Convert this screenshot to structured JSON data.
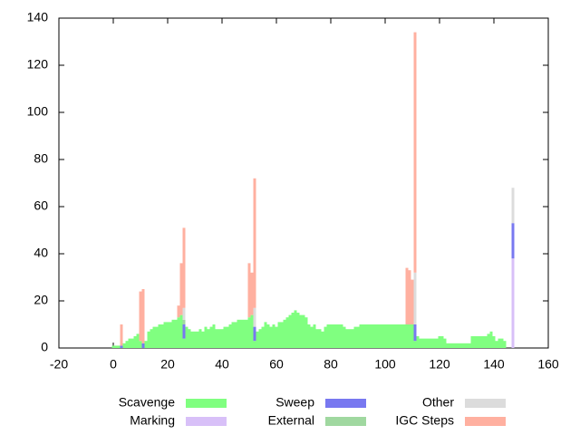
{
  "chart_data": {
    "type": "stacked-bar",
    "x": [
      0,
      1,
      2,
      3,
      4,
      5,
      6,
      7,
      8,
      9,
      10,
      11,
      12,
      13,
      14,
      15,
      16,
      17,
      18,
      19,
      20,
      21,
      22,
      23,
      24,
      25,
      26,
      27,
      28,
      29,
      30,
      31,
      32,
      33,
      34,
      35,
      36,
      37,
      38,
      39,
      40,
      41,
      42,
      43,
      44,
      45,
      46,
      47,
      48,
      49,
      50,
      51,
      52,
      53,
      54,
      55,
      56,
      57,
      58,
      59,
      60,
      61,
      62,
      63,
      64,
      65,
      66,
      67,
      68,
      69,
      70,
      71,
      72,
      73,
      74,
      75,
      76,
      77,
      78,
      79,
      80,
      81,
      82,
      83,
      84,
      85,
      86,
      87,
      88,
      89,
      90,
      91,
      92,
      93,
      94,
      95,
      96,
      97,
      98,
      99,
      100,
      101,
      102,
      103,
      104,
      105,
      106,
      107,
      108,
      109,
      110,
      111,
      112,
      113,
      114,
      115,
      116,
      117,
      118,
      119,
      120,
      121,
      122,
      123,
      124,
      125,
      126,
      127,
      128,
      129,
      130,
      131,
      132,
      133,
      134,
      135,
      136,
      137,
      138,
      139,
      140,
      141,
      142,
      143,
      144,
      145,
      146,
      147
    ],
    "series": [
      {
        "name": "Scavenge",
        "color": "#80ff80",
        "values": [
          1,
          1,
          1,
          0,
          2,
          3,
          4,
          4,
          5,
          6,
          3,
          0,
          3,
          7,
          8,
          9,
          9,
          10,
          10,
          11,
          11,
          11,
          12,
          12,
          13,
          14,
          4,
          9,
          8,
          7,
          7,
          7,
          8,
          7,
          9,
          8,
          9,
          10,
          8,
          8,
          8,
          9,
          9,
          10,
          11,
          11,
          12,
          12,
          12,
          12,
          13,
          14,
          3,
          7,
          8,
          9,
          11,
          10,
          9,
          10,
          9,
          11,
          11,
          12,
          13,
          14,
          15,
          16,
          15,
          14,
          14,
          13,
          10,
          9,
          10,
          8,
          8,
          7,
          9,
          10,
          10,
          10,
          10,
          10,
          10,
          9,
          8,
          8,
          8,
          9,
          9,
          10,
          10,
          10,
          10,
          10,
          10,
          10,
          10,
          10,
          10,
          10,
          10,
          10,
          10,
          10,
          10,
          10,
          10,
          10,
          10,
          3,
          5,
          4,
          4,
          4,
          4,
          4,
          4,
          4,
          5,
          5,
          4,
          2,
          2,
          2,
          2,
          2,
          2,
          2,
          2,
          2,
          5,
          5,
          5,
          5,
          5,
          5,
          6,
          7,
          5,
          3,
          4,
          4,
          3,
          0,
          0,
          0
        ]
      },
      {
        "name": "Marking",
        "color": "#d8c0f8",
        "values": [
          0,
          0,
          0,
          0,
          0,
          0,
          0,
          0,
          0,
          0,
          0,
          0,
          0,
          0,
          0,
          0,
          0,
          0,
          0,
          0,
          0,
          0,
          0,
          0,
          0,
          0,
          0,
          0,
          0,
          0,
          0,
          0,
          0,
          0,
          0,
          0,
          0,
          0,
          0,
          0,
          0,
          0,
          0,
          0,
          0,
          0,
          0,
          0,
          0,
          0,
          0,
          0,
          0,
          0,
          0,
          0,
          0,
          0,
          0,
          0,
          0,
          0,
          0,
          0,
          0,
          0,
          0,
          0,
          0,
          0,
          0,
          0,
          0,
          0,
          0,
          0,
          0,
          0,
          0,
          0,
          0,
          0,
          0,
          0,
          0,
          0,
          0,
          0,
          0,
          0,
          0,
          0,
          0,
          0,
          0,
          0,
          0,
          0,
          0,
          0,
          0,
          0,
          0,
          0,
          0,
          0,
          0,
          0,
          0,
          0,
          0,
          0,
          0,
          0,
          0,
          0,
          0,
          0,
          0,
          0,
          0,
          0,
          0,
          0,
          0,
          0,
          0,
          0,
          0,
          0,
          0,
          0,
          0,
          0,
          0,
          0,
          0,
          0,
          0,
          0,
          0,
          0,
          0,
          0,
          0,
          0,
          0,
          38
        ]
      },
      {
        "name": "Sweep",
        "color": "#7878f0",
        "values": [
          0,
          0,
          0,
          1,
          0,
          0,
          0,
          0,
          0,
          0,
          0,
          2,
          0,
          0,
          0,
          0,
          0,
          0,
          0,
          0,
          0,
          0,
          0,
          0,
          0,
          0,
          6,
          0,
          0,
          0,
          0,
          0,
          0,
          0,
          0,
          0,
          0,
          0,
          0,
          0,
          0,
          0,
          0,
          0,
          0,
          0,
          0,
          0,
          0,
          0,
          0,
          0,
          6,
          0,
          0,
          0,
          0,
          0,
          0,
          0,
          0,
          0,
          0,
          0,
          0,
          0,
          0,
          0,
          0,
          0,
          0,
          0,
          0,
          0,
          0,
          0,
          0,
          0,
          0,
          0,
          0,
          0,
          0,
          0,
          0,
          0,
          0,
          0,
          0,
          0,
          0,
          0,
          0,
          0,
          0,
          0,
          0,
          0,
          0,
          0,
          0,
          0,
          0,
          0,
          0,
          0,
          0,
          0,
          0,
          0,
          0,
          7,
          0,
          0,
          0,
          0,
          0,
          0,
          0,
          0,
          0,
          0,
          0,
          0,
          0,
          0,
          0,
          0,
          0,
          0,
          0,
          0,
          0,
          0,
          0,
          0,
          0,
          0,
          0,
          0,
          0,
          0,
          0,
          0,
          0,
          0,
          0,
          15
        ]
      },
      {
        "name": "External",
        "color": "#a0d8a0",
        "values": [
          0,
          0,
          0,
          0,
          0,
          0,
          0,
          0,
          0,
          0,
          0,
          0,
          0,
          0,
          0,
          0,
          0,
          0,
          0,
          0,
          0,
          0,
          0,
          0,
          0,
          0,
          2,
          0,
          0,
          0,
          0,
          0,
          0,
          0,
          0,
          0,
          0,
          0,
          0,
          0,
          0,
          0,
          0,
          0,
          0,
          0,
          0,
          0,
          0,
          0,
          0,
          0,
          0,
          0,
          0,
          0,
          0,
          0,
          0,
          0,
          0,
          0,
          0,
          0,
          0,
          0,
          0,
          0,
          0,
          0,
          0,
          0,
          0,
          0,
          0,
          0,
          0,
          0,
          0,
          0,
          0,
          0,
          0,
          0,
          0,
          0,
          0,
          0,
          0,
          0,
          0,
          0,
          0,
          0,
          0,
          0,
          0,
          0,
          0,
          0,
          0,
          0,
          0,
          0,
          0,
          0,
          0,
          0,
          0,
          0,
          0,
          0,
          0,
          0,
          0,
          0,
          0,
          0,
          0,
          0,
          0,
          0,
          0,
          0,
          0,
          0,
          0,
          0,
          0,
          0,
          0,
          0,
          0,
          0,
          0,
          0,
          0,
          0,
          0,
          0,
          0,
          0,
          0,
          0,
          0,
          0,
          0,
          0
        ]
      },
      {
        "name": "Other",
        "color": "#dcdcdc",
        "values": [
          0,
          0,
          0,
          0,
          0,
          0,
          0,
          0,
          0,
          0,
          0,
          0,
          0,
          0,
          0,
          0,
          0,
          0,
          0,
          0,
          0,
          0,
          0,
          0,
          0,
          0,
          5,
          0,
          0,
          0,
          0,
          0,
          0,
          0,
          0,
          0,
          0,
          0,
          0,
          0,
          0,
          0,
          0,
          0,
          0,
          0,
          0,
          0,
          0,
          0,
          0,
          0,
          8,
          0,
          0,
          0,
          0,
          0,
          0,
          0,
          0,
          0,
          0,
          0,
          0,
          0,
          0,
          0,
          0,
          0,
          0,
          0,
          0,
          0,
          0,
          0,
          0,
          0,
          0,
          0,
          0,
          0,
          0,
          0,
          0,
          0,
          0,
          0,
          0,
          0,
          0,
          0,
          0,
          0,
          0,
          0,
          0,
          0,
          0,
          0,
          0,
          0,
          0,
          0,
          0,
          0,
          0,
          0,
          0,
          0,
          0,
          22,
          0,
          0,
          0,
          0,
          0,
          0,
          0,
          0,
          0,
          0,
          0,
          0,
          0,
          0,
          0,
          0,
          0,
          0,
          0,
          0,
          0,
          0,
          0,
          0,
          0,
          0,
          0,
          0,
          0,
          0,
          0,
          0,
          0,
          0,
          0,
          15
        ]
      },
      {
        "name": "IGC Steps",
        "color": "#ffb0a0",
        "values": [
          0,
          0,
          0,
          9,
          0,
          0,
          0,
          0,
          0,
          0,
          21,
          23,
          0,
          0,
          0,
          0,
          0,
          0,
          0,
          0,
          0,
          0,
          0,
          0,
          5,
          22,
          34,
          0,
          0,
          0,
          0,
          0,
          0,
          0,
          0,
          0,
          0,
          0,
          0,
          0,
          0,
          0,
          0,
          0,
          0,
          0,
          0,
          0,
          0,
          0,
          23,
          18,
          55,
          0,
          0,
          0,
          0,
          0,
          0,
          0,
          0,
          0,
          0,
          0,
          0,
          0,
          0,
          0,
          0,
          0,
          0,
          0,
          0,
          0,
          0,
          0,
          0,
          0,
          0,
          0,
          0,
          0,
          0,
          0,
          0,
          0,
          0,
          0,
          0,
          0,
          0,
          0,
          0,
          0,
          0,
          0,
          0,
          0,
          0,
          0,
          0,
          0,
          0,
          0,
          0,
          0,
          0,
          0,
          24,
          23,
          19,
          102,
          0,
          0,
          0,
          0,
          0,
          0,
          0,
          0,
          0,
          0,
          0,
          0,
          0,
          0,
          0,
          0,
          0,
          0,
          0,
          0,
          0,
          0,
          0,
          0,
          0,
          0,
          0,
          0,
          0,
          0,
          0,
          0,
          0,
          0,
          0,
          0
        ]
      }
    ],
    "xlim": [
      -20,
      160
    ],
    "xticks": [
      -20,
      0,
      20,
      40,
      60,
      80,
      100,
      120,
      140,
      160
    ],
    "ylim": [
      0,
      140
    ],
    "yticks": [
      0,
      20,
      40,
      60,
      80,
      100,
      120,
      140
    ],
    "grid": false
  }
}
